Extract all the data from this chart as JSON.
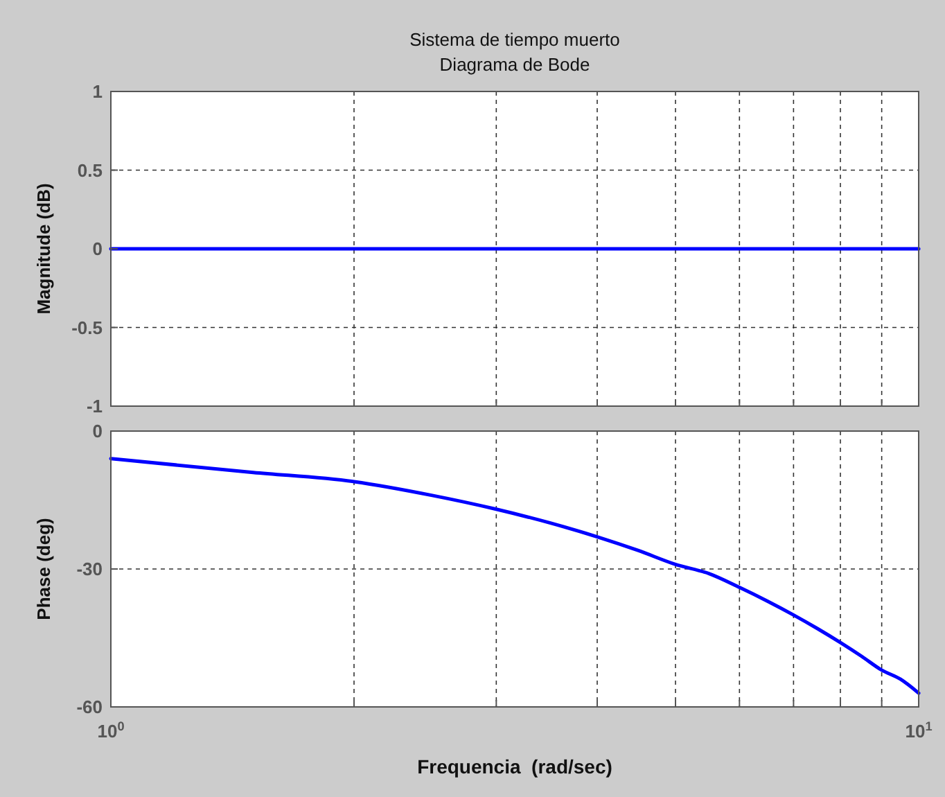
{
  "chart_data": [
    {
      "type": "line",
      "title": "Sistema de tiempo muerto",
      "subtitle": "Diagrama de Bode",
      "ylabel": "Magnitude (dB)",
      "log": "x",
      "grid": true,
      "tick_labels": "y",
      "xlim": [
        1,
        10
      ],
      "xticks": [
        {
          "value": 1,
          "label": null
        },
        {
          "value": 2,
          "label": null
        },
        {
          "value": 3,
          "label": null
        },
        {
          "value": 4,
          "label": null
        },
        {
          "value": 5,
          "label": null
        },
        {
          "value": 6,
          "label": null
        },
        {
          "value": 7,
          "label": null
        },
        {
          "value": 8,
          "label": null
        },
        {
          "value": 9,
          "label": null
        },
        {
          "value": 10,
          "label": null
        }
      ],
      "ylim": [
        -1,
        1
      ],
      "yticks": [
        -1,
        -0.5,
        0,
        0.5,
        1
      ],
      "series": [
        {
          "color": "#0000ff",
          "x": [
            1,
            10
          ],
          "values": [
            0,
            0
          ]
        }
      ]
    },
    {
      "type": "line",
      "xlabel": "Frequencia  (rad/sec)",
      "ylabel": "Phase (deg)",
      "log": "x",
      "grid": true,
      "xlim": [
        1,
        10
      ],
      "xticks": [
        {
          "value": 1,
          "label": "10$^{0}$"
        },
        {
          "value": 2,
          "label": null
        },
        {
          "value": 3,
          "label": null
        },
        {
          "value": 4,
          "label": null
        },
        {
          "value": 5,
          "label": null
        },
        {
          "value": 6,
          "label": null
        },
        {
          "value": 7,
          "label": null
        },
        {
          "value": 8,
          "label": null
        },
        {
          "value": 9,
          "label": null
        },
        {
          "value": 10,
          "label": "10$^{1}$"
        }
      ],
      "ylim": [
        -60,
        0
      ],
      "yticks": [
        -60,
        -30,
        0
      ],
      "series": [
        {
          "color": "#0000ff",
          "x": [
            1,
            1.5,
            2,
            2.5,
            3,
            3.5,
            4,
            4.5,
            5,
            5.5,
            6,
            6.5,
            7,
            7.5,
            8,
            8.5,
            9,
            9.5,
            10
          ],
          "values": [
            -6,
            -9,
            -11,
            -14,
            -17,
            -20,
            -23,
            -26,
            -29,
            -31,
            -34,
            -37,
            -40,
            -43,
            -46,
            -49,
            -52,
            -54,
            -57
          ]
        }
      ]
    }
  ]
}
